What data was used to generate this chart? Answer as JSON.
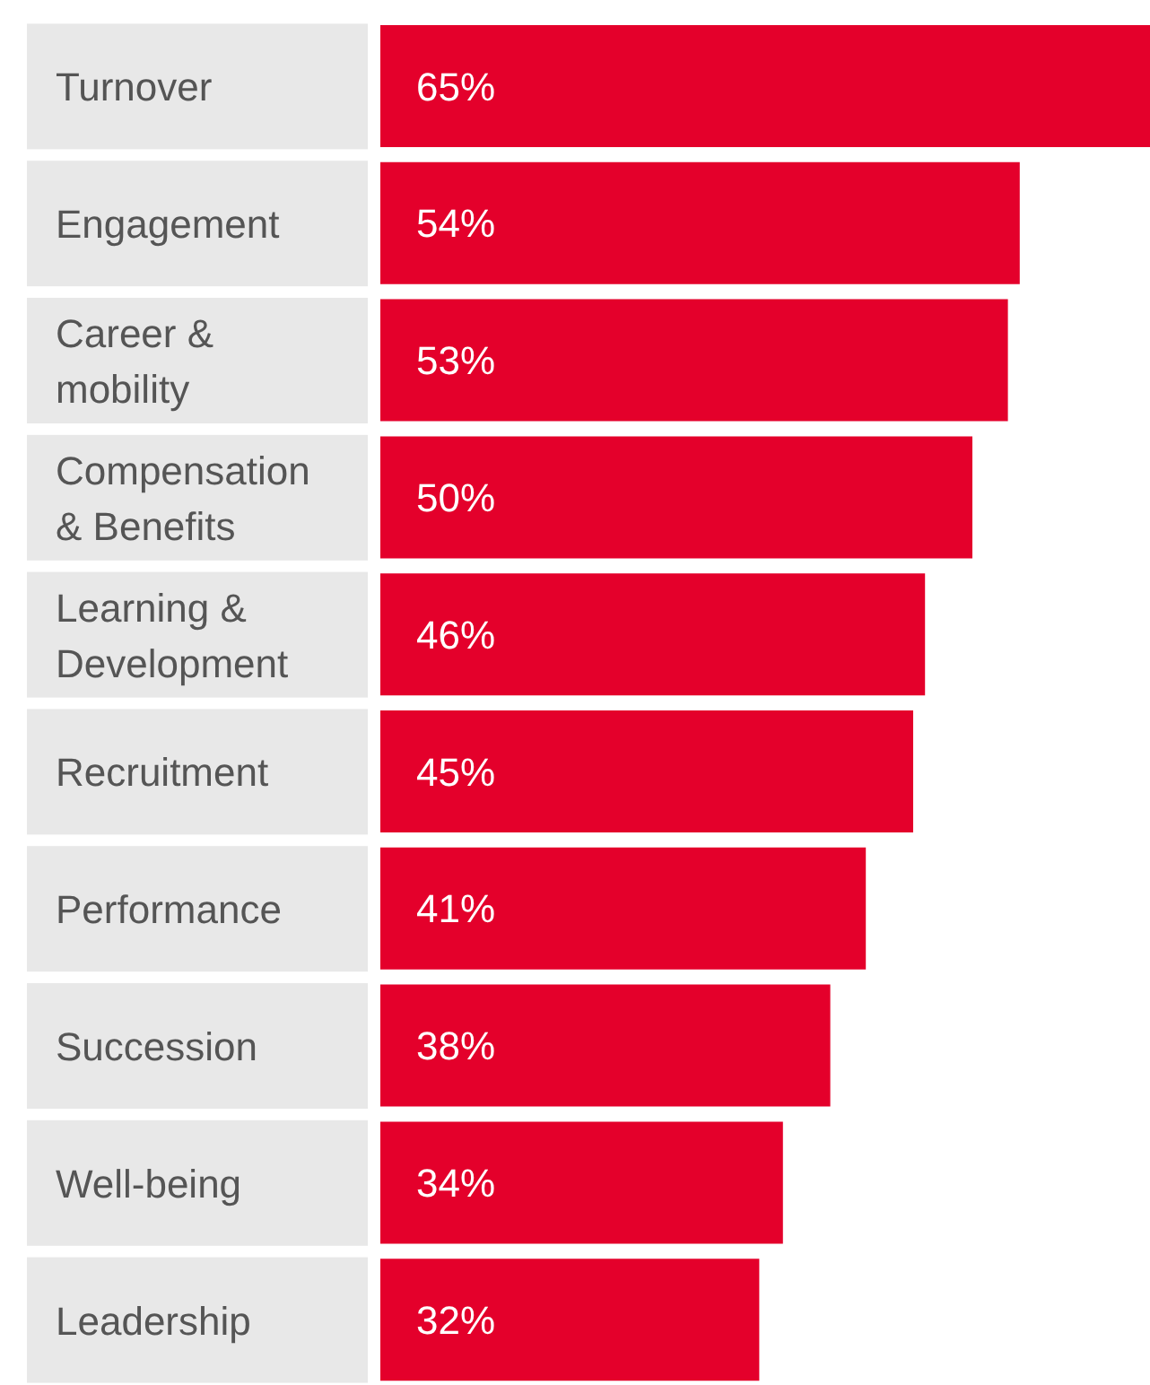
{
  "chart_data": {
    "type": "bar",
    "orientation": "horizontal",
    "categories": [
      "Turnover",
      "Engagement",
      "Career & mobility",
      "Compensation & Benefits",
      "Learning & Development",
      "Recruitment",
      "Performance",
      "Succession",
      "Well-being",
      "Leadership"
    ],
    "values": [
      65,
      54,
      53,
      50,
      46,
      45,
      41,
      38,
      34,
      32
    ],
    "value_labels": [
      "65%",
      "54%",
      "53%",
      "50%",
      "46%",
      "45%",
      "41%",
      "38%",
      "34%",
      "32%"
    ],
    "color": "#e4002b"
  }
}
